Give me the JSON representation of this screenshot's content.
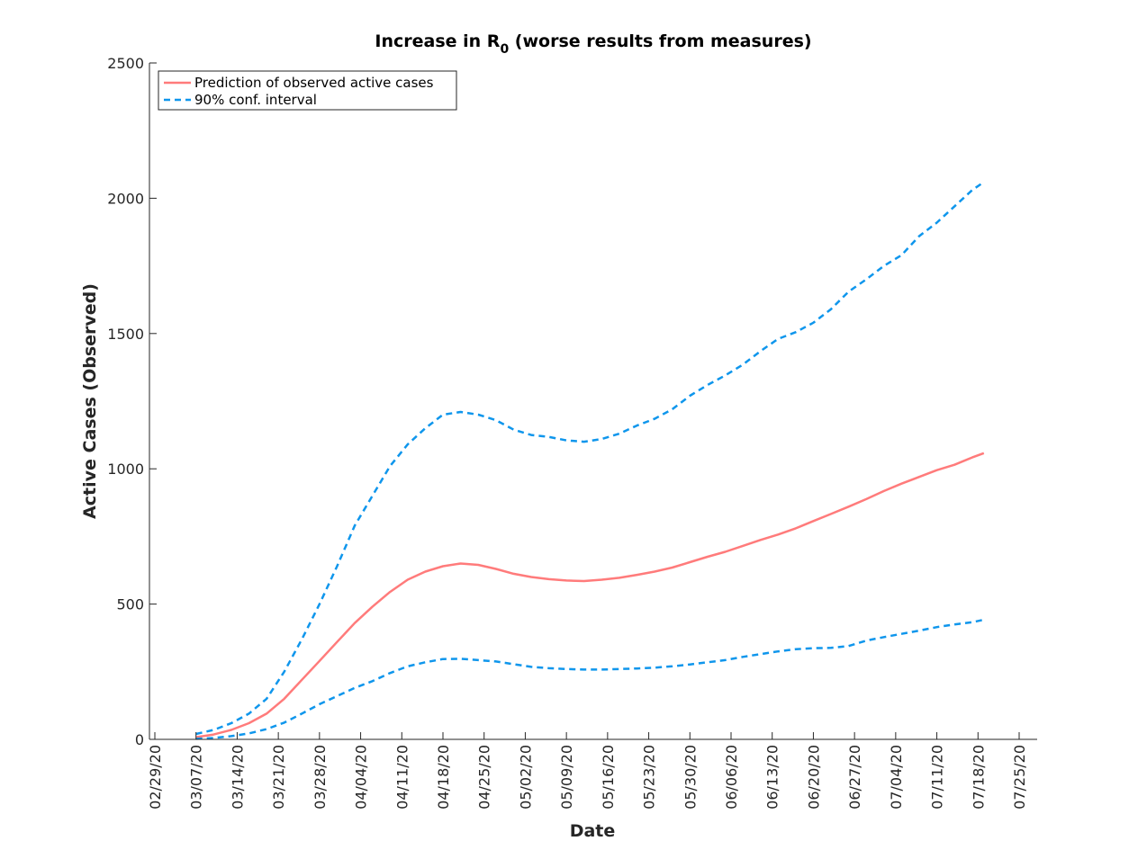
{
  "chart_data": {
    "type": "line",
    "title": "Increase in R",
    "title_subscript": "0",
    "title_suffix": " (worse results from measures)",
    "xlabel": "Date",
    "ylabel": "Active Cases (Observed)",
    "xlim": [
      "02/29/20",
      "07/25/20"
    ],
    "ylim": [
      0,
      2500
    ],
    "yticks": [
      0,
      500,
      1000,
      1500,
      2000,
      2500
    ],
    "xticks": [
      "02/29/20",
      "03/07/20",
      "03/14/20",
      "03/21/20",
      "03/28/20",
      "04/04/20",
      "04/11/20",
      "04/18/20",
      "04/25/20",
      "05/02/20",
      "05/09/20",
      "05/16/20",
      "05/23/20",
      "05/30/20",
      "06/06/20",
      "06/13/20",
      "06/20/20",
      "06/27/20",
      "07/04/20",
      "07/11/20",
      "07/18/20",
      "07/25/20"
    ],
    "grid": false,
    "legend_position": "top-left",
    "series": [
      {
        "name": "Prediction of observed active cases",
        "color": "#ff7b7b",
        "style": "solid",
        "points": [
          [
            "03/07/20",
            8
          ],
          [
            "03/10/20",
            18
          ],
          [
            "03/13/20",
            35
          ],
          [
            "03/16/20",
            60
          ],
          [
            "03/19/20",
            95
          ],
          [
            "03/22/20",
            150
          ],
          [
            "03/25/20",
            220
          ],
          [
            "03/28/20",
            290
          ],
          [
            "03/31/20",
            360
          ],
          [
            "04/03/20",
            430
          ],
          [
            "04/06/20",
            490
          ],
          [
            "04/09/20",
            545
          ],
          [
            "04/12/20",
            590
          ],
          [
            "04/15/20",
            620
          ],
          [
            "04/18/20",
            640
          ],
          [
            "04/21/20",
            650
          ],
          [
            "04/24/20",
            645
          ],
          [
            "04/27/20",
            630
          ],
          [
            "04/30/20",
            612
          ],
          [
            "05/03/20",
            600
          ],
          [
            "05/06/20",
            592
          ],
          [
            "05/09/20",
            587
          ],
          [
            "05/12/20",
            585
          ],
          [
            "05/15/20",
            590
          ],
          [
            "05/18/20",
            597
          ],
          [
            "05/21/20",
            608
          ],
          [
            "05/24/20",
            620
          ],
          [
            "05/27/20",
            635
          ],
          [
            "05/30/20",
            655
          ],
          [
            "06/02/20",
            675
          ],
          [
            "06/05/20",
            693
          ],
          [
            "06/08/20",
            715
          ],
          [
            "06/11/20",
            737
          ],
          [
            "06/14/20",
            757
          ],
          [
            "06/17/20",
            780
          ],
          [
            "06/20/20",
            807
          ],
          [
            "06/23/20",
            833
          ],
          [
            "06/26/20",
            860
          ],
          [
            "06/29/20",
            888
          ],
          [
            "07/02/20",
            918
          ],
          [
            "07/05/20",
            945
          ],
          [
            "07/08/20",
            970
          ],
          [
            "07/11/20",
            995
          ],
          [
            "07/14/20",
            1015
          ],
          [
            "07/17/20",
            1042
          ],
          [
            "07/19/20",
            1058
          ]
        ]
      },
      {
        "name": "90% conf. interval",
        "color": "#0f96ec",
        "style": "dashed",
        "points": [
          [
            "03/07/20",
            20
          ],
          [
            "03/10/20",
            35
          ],
          [
            "03/13/20",
            60
          ],
          [
            "03/16/20",
            95
          ],
          [
            "03/19/20",
            150
          ],
          [
            "03/22/20",
            250
          ],
          [
            "03/25/20",
            370
          ],
          [
            "03/28/20",
            500
          ],
          [
            "03/31/20",
            640
          ],
          [
            "04/03/20",
            790
          ],
          [
            "04/06/20",
            900
          ],
          [
            "04/09/20",
            1010
          ],
          [
            "04/12/20",
            1090
          ],
          [
            "04/15/20",
            1150
          ],
          [
            "04/18/20",
            1200
          ],
          [
            "04/21/20",
            1210
          ],
          [
            "04/24/20",
            1200
          ],
          [
            "04/27/20",
            1180
          ],
          [
            "04/30/20",
            1145
          ],
          [
            "05/03/20",
            1125
          ],
          [
            "05/06/20",
            1118
          ],
          [
            "05/09/20",
            1105
          ],
          [
            "05/12/20",
            1100
          ],
          [
            "05/15/20",
            1110
          ],
          [
            "05/18/20",
            1130
          ],
          [
            "05/21/20",
            1160
          ],
          [
            "05/24/20",
            1185
          ],
          [
            "05/27/20",
            1220
          ],
          [
            "05/30/20",
            1270
          ],
          [
            "06/02/20",
            1310
          ],
          [
            "06/05/20",
            1345
          ],
          [
            "06/08/20",
            1385
          ],
          [
            "06/11/20",
            1435
          ],
          [
            "06/14/20",
            1480
          ],
          [
            "06/17/20",
            1505
          ],
          [
            "06/20/20",
            1540
          ],
          [
            "06/23/20",
            1590
          ],
          [
            "06/26/20",
            1655
          ],
          [
            "06/29/20",
            1700
          ],
          [
            "07/02/20",
            1750
          ],
          [
            "07/05/20",
            1790
          ],
          [
            "07/08/20",
            1860
          ],
          [
            "07/11/20",
            1910
          ],
          [
            "07/14/20",
            1970
          ],
          [
            "07/17/20",
            2030
          ],
          [
            "07/19/20",
            2060
          ]
        ]
      },
      {
        "name": "90% conf. interval",
        "color": "#0f96ec",
        "style": "dashed",
        "show_in_legend": false,
        "points": [
          [
            "03/07/20",
            2
          ],
          [
            "03/10/20",
            5
          ],
          [
            "03/13/20",
            12
          ],
          [
            "03/16/20",
            22
          ],
          [
            "03/19/20",
            38
          ],
          [
            "03/22/20",
            62
          ],
          [
            "03/25/20",
            95
          ],
          [
            "03/28/20",
            130
          ],
          [
            "03/31/20",
            160
          ],
          [
            "04/03/20",
            190
          ],
          [
            "04/06/20",
            215
          ],
          [
            "04/09/20",
            245
          ],
          [
            "04/12/20",
            270
          ],
          [
            "04/15/20",
            285
          ],
          [
            "04/18/20",
            297
          ],
          [
            "04/21/20",
            298
          ],
          [
            "04/24/20",
            293
          ],
          [
            "04/27/20",
            288
          ],
          [
            "04/30/20",
            278
          ],
          [
            "05/03/20",
            268
          ],
          [
            "05/06/20",
            263
          ],
          [
            "05/09/20",
            260
          ],
          [
            "05/12/20",
            258
          ],
          [
            "05/15/20",
            258
          ],
          [
            "05/18/20",
            260
          ],
          [
            "05/21/20",
            262
          ],
          [
            "05/24/20",
            265
          ],
          [
            "05/27/20",
            270
          ],
          [
            "05/30/20",
            277
          ],
          [
            "06/02/20",
            285
          ],
          [
            "06/05/20",
            293
          ],
          [
            "06/08/20",
            305
          ],
          [
            "06/11/20",
            315
          ],
          [
            "06/14/20",
            325
          ],
          [
            "06/17/20",
            333
          ],
          [
            "06/20/20",
            337
          ],
          [
            "06/23/20",
            338
          ],
          [
            "06/26/20",
            345
          ],
          [
            "06/29/20",
            365
          ],
          [
            "07/02/20",
            378
          ],
          [
            "07/05/20",
            390
          ],
          [
            "07/08/20",
            402
          ],
          [
            "07/11/20",
            415
          ],
          [
            "07/14/20",
            425
          ],
          [
            "07/17/20",
            433
          ],
          [
            "07/19/20",
            442
          ]
        ]
      }
    ]
  }
}
